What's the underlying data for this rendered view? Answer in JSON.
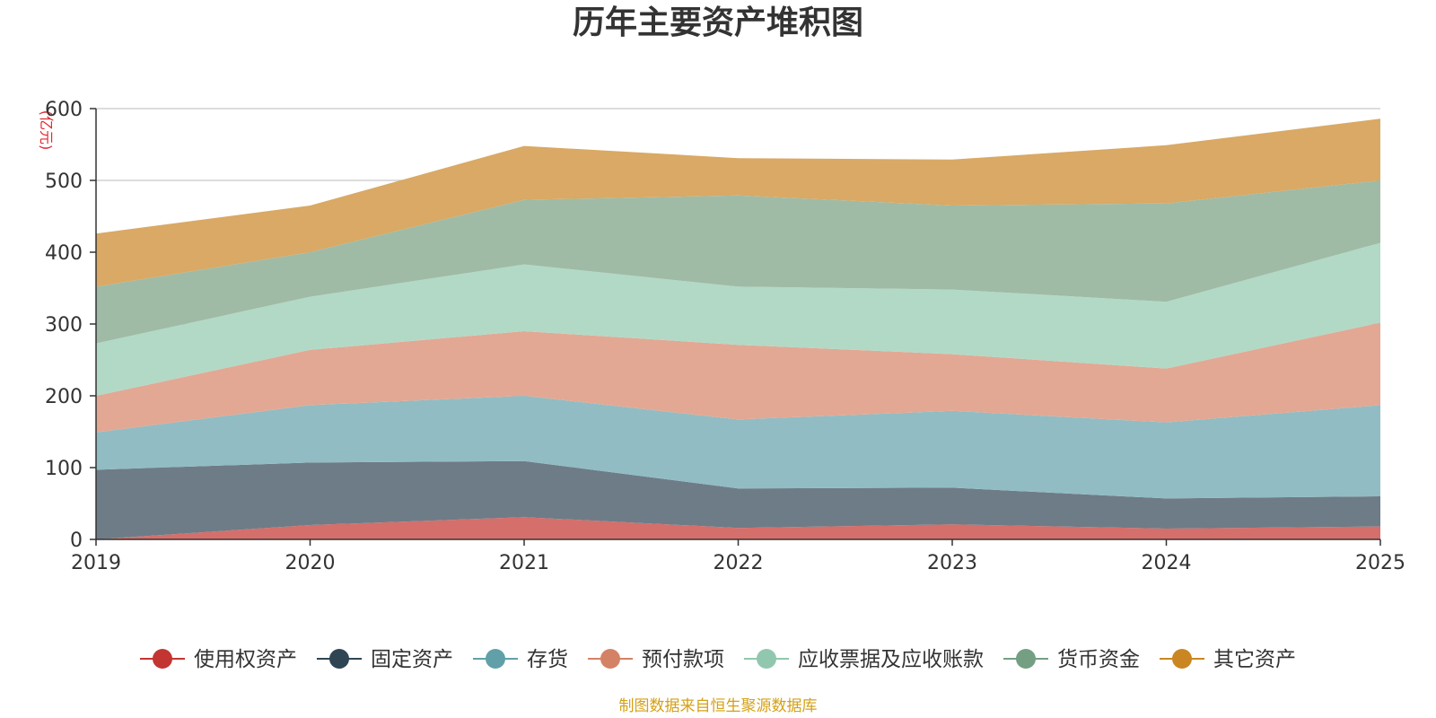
{
  "chart_data": {
    "type": "area",
    "stacked": true,
    "title": "历年主要资产堆积图",
    "ylabel": "(亿元)",
    "xlabel": "",
    "ylim": [
      0,
      600
    ],
    "yticks": [
      "0",
      "100",
      "200",
      "300",
      "400",
      "500",
      "600"
    ],
    "x": [
      "2019",
      "2020",
      "2021",
      "2022",
      "2023",
      "2024",
      "2025"
    ],
    "grid": true,
    "legend_position": "bottom",
    "series": [
      {
        "name": "使用权资产",
        "color": "#c23531",
        "fill": "#d46f6b",
        "values": [
          0,
          20,
          31,
          16,
          21,
          15,
          18
        ]
      },
      {
        "name": "固定资产",
        "color": "#2f4554",
        "fill": "#6e7c87",
        "values": [
          97,
          87,
          78,
          55,
          51,
          42,
          42
        ]
      },
      {
        "name": "存货",
        "color": "#61a0a8",
        "fill": "#91bcc3",
        "values": [
          52,
          80,
          91,
          96,
          107,
          106,
          127
        ]
      },
      {
        "name": "预付款项",
        "color": "#d48265",
        "fill": "#e2a894",
        "values": [
          51,
          77,
          90,
          104,
          79,
          75,
          115
        ]
      },
      {
        "name": "应收票据及应收账款",
        "color": "#91c7ae",
        "fill": "#b2d9c6",
        "values": [
          73,
          74,
          93,
          81,
          90,
          93,
          111
        ]
      },
      {
        "name": "货币资金",
        "color": "#749f83",
        "fill": "#9fbba6",
        "values": [
          79,
          62,
          90,
          127,
          117,
          137,
          87
        ]
      },
      {
        "name": "其它资产",
        "color": "#ca8622",
        "fill": "#d9a965",
        "values": [
          74,
          65,
          75,
          52,
          64,
          81,
          86
        ]
      }
    ]
  },
  "footer": {
    "source": "制图数据来自恒生聚源数据库"
  }
}
